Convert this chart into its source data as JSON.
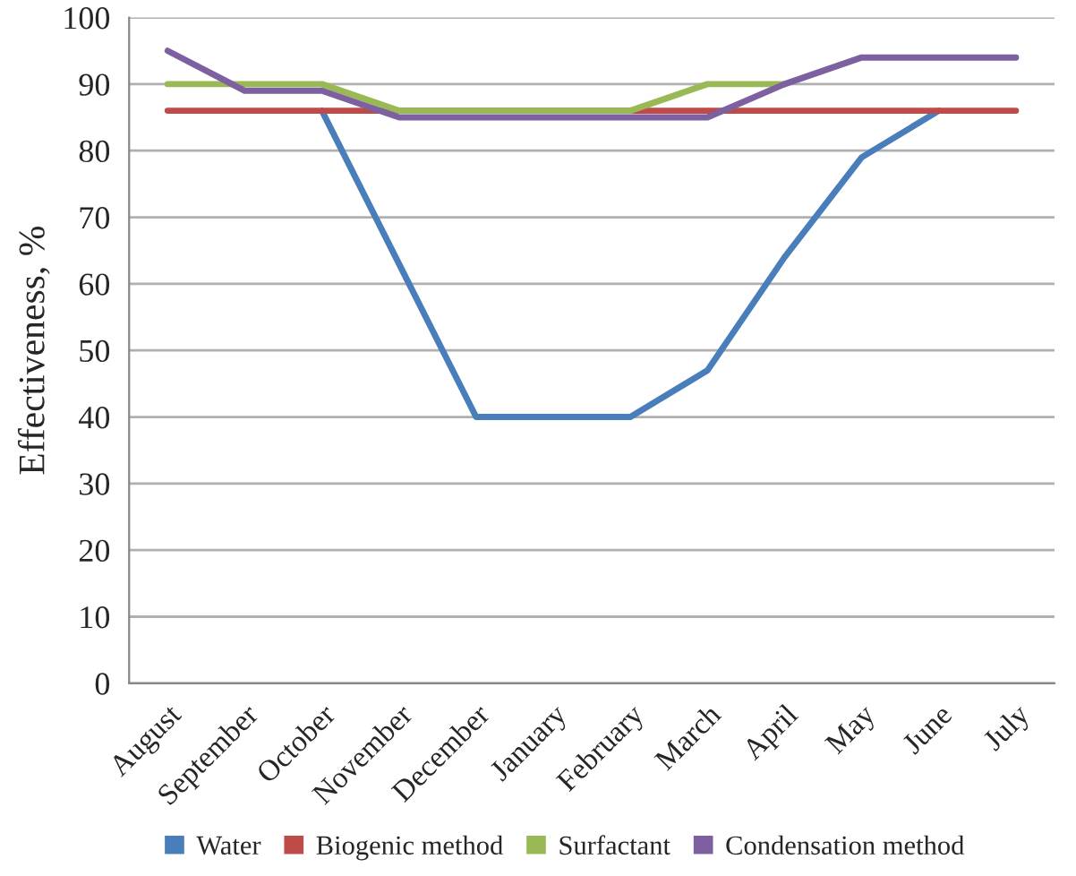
{
  "chart_data": {
    "type": "line",
    "ylabel": "Effectiveness, %",
    "categories": [
      "August",
      "September",
      "October",
      "November",
      "December",
      "January",
      "February",
      "March",
      "April",
      "May",
      "June",
      "July"
    ],
    "series": [
      {
        "name": "Water",
        "color": "#4a7ebb",
        "values": [
          null,
          null,
          86,
          63,
          40,
          40,
          40,
          47,
          64,
          79,
          86,
          null
        ]
      },
      {
        "name": "Biogenic method",
        "color": "#be4b48",
        "values": [
          86,
          86,
          86,
          86,
          86,
          86,
          86,
          86,
          86,
          86,
          86,
          86
        ]
      },
      {
        "name": "Surfactant",
        "color": "#98b954",
        "values": [
          90,
          90,
          90,
          86,
          86,
          86,
          86,
          90,
          90,
          null,
          null,
          null
        ]
      },
      {
        "name": "Condensation method",
        "color": "#7d60a0",
        "values": [
          95,
          89,
          89,
          85,
          85,
          85,
          85,
          85,
          90,
          94,
          94,
          94
        ]
      }
    ],
    "ylim": [
      0,
      100
    ],
    "yticks": [
      0,
      10,
      20,
      30,
      40,
      50,
      60,
      70,
      80,
      90,
      100
    ],
    "grid": "y",
    "legend": "bottom",
    "marker": "none",
    "line_style": "solid"
  }
}
